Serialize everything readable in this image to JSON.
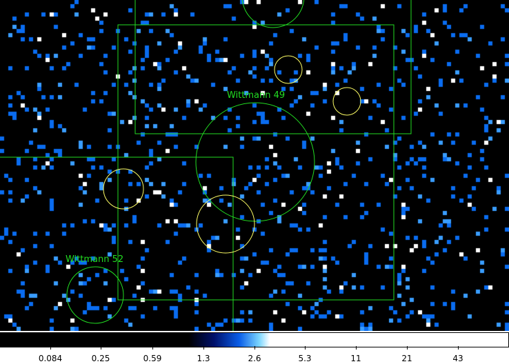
{
  "image": {
    "colors": {
      "background": "#000000",
      "count_low": "#0a6cf0",
      "count_mid": "#3a9dff",
      "count_high": "#ffffff",
      "green_region": "#22dd22",
      "yellow_region": "#ffff66"
    }
  },
  "annotations": {
    "label_49": "Wittmann 49",
    "label_52": "Wittmann 52"
  },
  "colorbar": {
    "ticks": [
      "0.084",
      "0.25",
      "0.59",
      "1.3",
      "2.6",
      "5.3",
      "11",
      "21",
      "43"
    ]
  }
}
